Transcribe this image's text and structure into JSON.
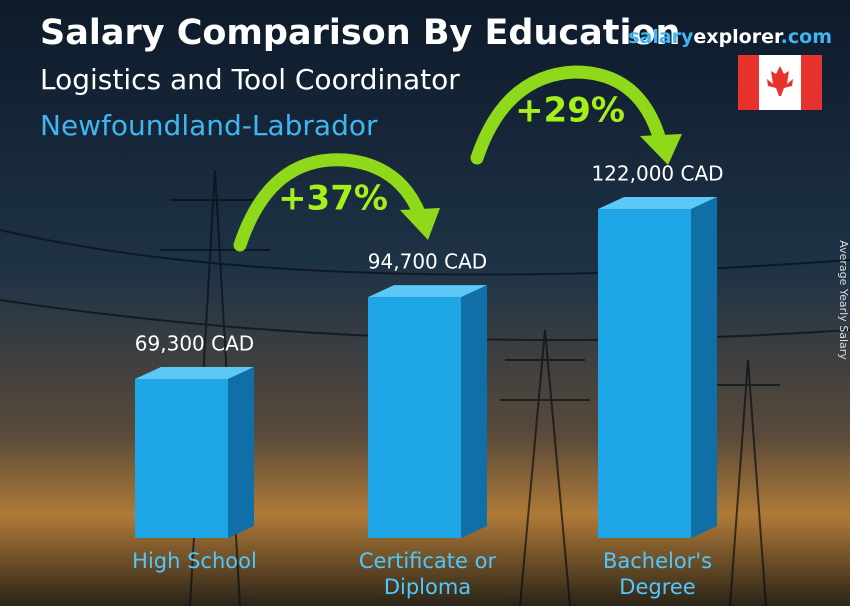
{
  "chart_data": {
    "type": "bar",
    "title": "Salary Comparison By Education",
    "subtitle": "Logistics and Tool Coordinator",
    "location": "Newfoundland-Labrador",
    "brand": [
      "salary",
      "explorer",
      ".com"
    ],
    "y_label": "Average Yearly Salary",
    "categories": [
      "High School",
      "Certificate or Diploma",
      "Bachelor's Degree"
    ],
    "values": [
      69300,
      94700,
      122000
    ],
    "value_labels": [
      "69,300 CAD",
      "94,700 CAD",
      "122,000 CAD"
    ],
    "annotations": [
      "+37%",
      "+29%"
    ],
    "color": "#1fa6e6",
    "ylim": [
      20000,
      140000
    ]
  }
}
